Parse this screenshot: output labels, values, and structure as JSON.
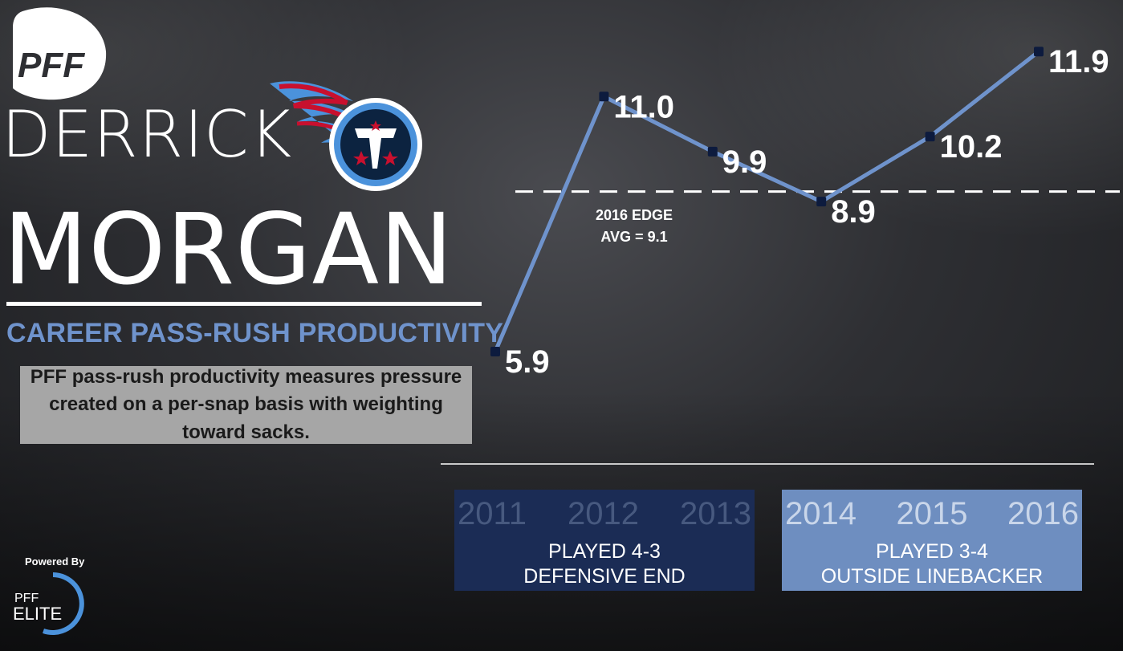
{
  "branding": {
    "pff_logo_icon": "pff-football-logo",
    "team_logo_icon": "titans-logo",
    "powered_by": "Powered By",
    "elite_pff": "PFF",
    "elite_label": "ELITE"
  },
  "player": {
    "first_name": "DERRICK",
    "last_name": "MORGAN"
  },
  "subtitle": "CAREER PASS-RUSH PRODUCTIVITY",
  "description": "PFF pass-rush productivity measures pressure created on a per-snap basis with weighting toward sacks.",
  "colors": {
    "line": "#6f93cc",
    "marker": "#0d1b3e",
    "scheme_43": "#1b2c55",
    "scheme_34": "#6e8ec0",
    "subtitle": "#6f93cc"
  },
  "chart_data": {
    "type": "line",
    "x": [
      "2011",
      "2012",
      "2013",
      "2014",
      "2015",
      "2016"
    ],
    "values": [
      5.9,
      11.0,
      9.9,
      8.9,
      10.2,
      11.9
    ],
    "labels": [
      "5.9",
      "11.0",
      "9.9",
      "8.9",
      "10.2",
      "11.9"
    ],
    "reference_line": {
      "value": 9.1,
      "label_line1": "2016 EDGE",
      "label_line2": "AVG = 9.1"
    },
    "grid": false
  },
  "schemes": [
    {
      "years": [
        "2011",
        "2012",
        "2013"
      ],
      "line1": "PLAYED 4-3",
      "line2": "DEFENSIVE END"
    },
    {
      "years": [
        "2014",
        "2015",
        "2016"
      ],
      "line1": "PLAYED 3-4",
      "line2": "OUTSIDE LINEBACKER"
    }
  ]
}
